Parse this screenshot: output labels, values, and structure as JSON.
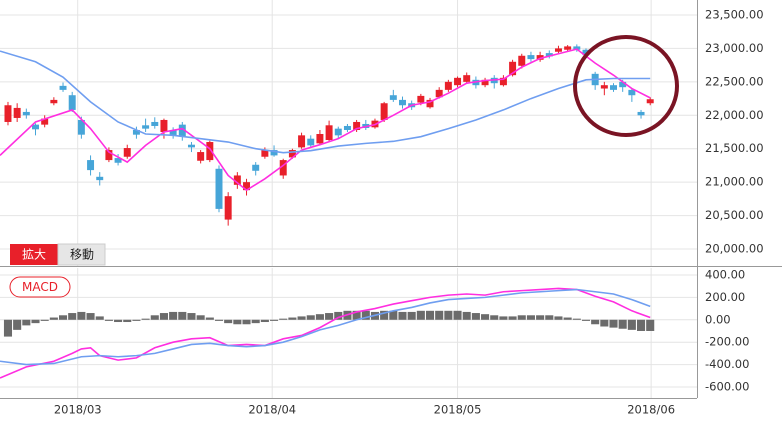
{
  "controls": [
    "拡大",
    "移動"
  ],
  "chart_data": [
    {
      "type": "candlestick",
      "grid": true,
      "up_color": "#e8202a",
      "down_color": "#46a5d8",
      "xlim": [
        -0.87,
        75.1
      ],
      "ylim": [
        19746,
        23724
      ],
      "yticks": [
        {
          "value": 20000,
          "label": "20,000.00"
        },
        {
          "value": 20500,
          "label": "20,500.00"
        },
        {
          "value": 21000,
          "label": "21,000.00"
        },
        {
          "value": 21500,
          "label": "21,500.00"
        },
        {
          "value": 22000,
          "label": "22,000.00"
        },
        {
          "value": 22500,
          "label": "22,500.00"
        },
        {
          "value": 23000,
          "label": "23,000.00"
        },
        {
          "value": 23500,
          "label": "23,500.00"
        }
      ],
      "x": [
        0,
        1,
        2,
        3,
        4,
        5,
        6,
        7,
        8,
        9,
        10,
        11,
        12,
        13,
        14,
        15,
        16,
        17,
        18,
        19,
        20,
        21,
        22,
        23,
        24,
        25,
        26,
        27,
        28,
        29,
        30,
        31,
        32,
        33,
        34,
        35,
        36,
        37,
        38,
        39,
        40,
        41,
        42,
        43,
        44,
        45,
        46,
        47,
        48,
        49,
        50,
        51,
        52,
        53,
        54,
        55,
        56,
        57,
        58,
        59,
        60,
        61,
        62,
        63,
        64,
        65,
        66,
        67,
        68,
        69,
        70
      ],
      "open": [
        21900,
        21960,
        22050,
        21860,
        21860,
        22180,
        22440,
        22300,
        21930,
        21330,
        21080,
        21330,
        21360,
        21380,
        21780,
        21850,
        21900,
        21750,
        21780,
        21860,
        21560,
        21320,
        21330,
        21200,
        20440,
        20960,
        20880,
        21260,
        21380,
        21480,
        21100,
        21370,
        21520,
        21650,
        21580,
        21630,
        21800,
        21840,
        21780,
        21870,
        21820,
        21930,
        22300,
        22230,
        22180,
        22190,
        22120,
        22270,
        22380,
        22450,
        22500,
        22530,
        22450,
        22560,
        22450,
        22600,
        22740,
        22900,
        22830,
        22930,
        22950,
        22980,
        23030,
        22980,
        22620,
        22400,
        22450,
        22500,
        22380,
        22050,
        22180
      ],
      "high": [
        22200,
        22180,
        22100,
        21880,
        22000,
        22270,
        22490,
        22350,
        21980,
        21400,
        21150,
        21520,
        21420,
        21560,
        21830,
        21950,
        21970,
        21950,
        21820,
        21900,
        21600,
        21480,
        21620,
        21250,
        20850,
        21150,
        21050,
        21300,
        21520,
        21550,
        21350,
        21500,
        21740,
        21700,
        21780,
        21920,
        21830,
        21870,
        21930,
        21930,
        21950,
        22200,
        22380,
        22280,
        22220,
        22320,
        22260,
        22420,
        22530,
        22580,
        22640,
        22580,
        22560,
        22600,
        22600,
        22830,
        22920,
        22950,
        22950,
        22970,
        23040,
        23050,
        23060,
        23000,
        22650,
        22500,
        22480,
        22530,
        22400,
        22080,
        22270
      ],
      "low": [
        21850,
        21900,
        21950,
        21700,
        21820,
        22150,
        22350,
        22050,
        21650,
        21100,
        20950,
        21300,
        21250,
        21350,
        21650,
        21750,
        21800,
        21650,
        21650,
        21620,
        21450,
        21280,
        21300,
        20550,
        20350,
        20900,
        20800,
        21100,
        21350,
        21380,
        21050,
        21350,
        21500,
        21520,
        21550,
        21600,
        21650,
        21750,
        21750,
        21780,
        21800,
        21900,
        22200,
        22100,
        22080,
        22150,
        22100,
        22250,
        22350,
        22420,
        22480,
        22400,
        22420,
        22400,
        22430,
        22580,
        22700,
        22800,
        22800,
        22850,
        22920,
        22950,
        22950,
        22850,
        22380,
        22300,
        22350,
        22350,
        22200,
        21950,
        22150
      ],
      "close": [
        22150,
        22110,
        22000,
        21790,
        21950,
        22230,
        22380,
        22080,
        21710,
        21180,
        21030,
        21480,
        21290,
        21510,
        21710,
        21800,
        21840,
        21930,
        21700,
        21680,
        21520,
        21450,
        21600,
        20600,
        20790,
        21100,
        21000,
        21170,
        21480,
        21400,
        21330,
        21480,
        21700,
        21550,
        21720,
        21850,
        21700,
        21780,
        21900,
        21810,
        21920,
        22180,
        22230,
        22150,
        22120,
        22290,
        22230,
        22380,
        22500,
        22560,
        22600,
        22450,
        22530,
        22480,
        22560,
        22800,
        22890,
        22840,
        22900,
        22880,
        23000,
        23030,
        22980,
        22900,
        22450,
        22450,
        22380,
        22420,
        22300,
        22000,
        22240
      ],
      "series": [
        {
          "color": "#ff2ee0",
          "x": [
            -0.87,
            3,
            7,
            9,
            11,
            13,
            15,
            17,
            19,
            21,
            22,
            24,
            26,
            28,
            30,
            32,
            34,
            36,
            38,
            40,
            42,
            44,
            46,
            48,
            50,
            52,
            54,
            56,
            58,
            60,
            62,
            64,
            66,
            68,
            70
          ],
          "values": [
            21400,
            21900,
            22080,
            21800,
            21450,
            21300,
            21550,
            21750,
            21800,
            21600,
            21500,
            21100,
            20880,
            21050,
            21250,
            21480,
            21560,
            21650,
            21800,
            21860,
            22000,
            22150,
            22200,
            22330,
            22480,
            22520,
            22540,
            22720,
            22850,
            22920,
            22990,
            22780,
            22600,
            22400,
            22260
          ]
        },
        {
          "color": "#6f9ef0",
          "x": [
            -0.87,
            3,
            6,
            9,
            12,
            15,
            18,
            21,
            24,
            27,
            30,
            33,
            36,
            39,
            42,
            45,
            48,
            51,
            54,
            57,
            60,
            63,
            66,
            70
          ],
          "values": [
            22960,
            22800,
            22570,
            22200,
            21900,
            21720,
            21700,
            21650,
            21600,
            21500,
            21440,
            21470,
            21540,
            21580,
            21610,
            21680,
            21800,
            21930,
            22080,
            22250,
            22400,
            22530,
            22550,
            22550
          ]
        }
      ]
    },
    {
      "type": "bar",
      "label": "MACD",
      "grid": true,
      "color": "#6b6b6b",
      "xlim": [
        -0.87,
        75.1
      ],
      "xticks": [
        {
          "value": 7.6,
          "label": "2018/03"
        },
        {
          "value": 28.8,
          "label": "2018/04"
        },
        {
          "value": 49,
          "label": "2018/05"
        },
        {
          "value": 70.1,
          "label": "2018/06"
        }
      ],
      "ylim": [
        -698,
        462
      ],
      "yticks": [
        {
          "value": -600,
          "label": "-600.00"
        },
        {
          "value": -400,
          "label": "-400.00"
        },
        {
          "value": -200,
          "label": "-200.00"
        },
        {
          "value": 0,
          "label": "0.00"
        },
        {
          "value": 200,
          "label": "200.00"
        },
        {
          "value": 400,
          "label": "400.00"
        }
      ],
      "x": [
        0,
        1,
        2,
        3,
        4,
        5,
        6,
        7,
        8,
        9,
        10,
        11,
        12,
        13,
        14,
        15,
        16,
        17,
        18,
        19,
        20,
        21,
        22,
        23,
        24,
        25,
        26,
        27,
        28,
        29,
        30,
        31,
        32,
        33,
        34,
        35,
        36,
        37,
        38,
        39,
        40,
        41,
        42,
        43,
        44,
        45,
        46,
        47,
        48,
        49,
        50,
        51,
        52,
        53,
        54,
        55,
        56,
        57,
        58,
        59,
        60,
        61,
        62,
        63,
        64,
        65,
        66,
        67,
        68,
        69,
        70
      ],
      "values": [
        -150,
        -90,
        -50,
        -30,
        -10,
        20,
        40,
        60,
        70,
        60,
        30,
        -10,
        -20,
        -20,
        -10,
        10,
        40,
        60,
        70,
        70,
        60,
        40,
        20,
        -10,
        -30,
        -40,
        -40,
        -30,
        -20,
        -10,
        10,
        20,
        30,
        40,
        50,
        60,
        70,
        80,
        80,
        80,
        70,
        80,
        80,
        70,
        70,
        80,
        80,
        80,
        80,
        80,
        70,
        60,
        50,
        40,
        30,
        30,
        40,
        40,
        40,
        40,
        30,
        20,
        10,
        -10,
        -40,
        -60,
        -70,
        -80,
        -90,
        -100,
        -100
      ],
      "series": [
        {
          "color": "#ff2ee0",
          "x": [
            -0.87,
            2,
            5,
            7,
            8,
            9,
            10,
            12,
            14,
            16,
            18,
            20,
            22,
            24,
            26,
            28,
            30,
            32,
            34,
            36,
            38,
            40,
            42,
            44,
            46,
            48,
            50,
            52,
            54,
            56,
            58,
            60,
            62,
            64,
            66,
            68,
            70
          ],
          "values": [
            -520,
            -420,
            -370,
            -300,
            -260,
            -250,
            -320,
            -360,
            -340,
            -250,
            -200,
            -170,
            -160,
            -230,
            -220,
            -230,
            -170,
            -140,
            -70,
            20,
            70,
            100,
            140,
            170,
            200,
            220,
            230,
            220,
            250,
            260,
            270,
            280,
            270,
            210,
            160,
            80,
            20
          ]
        },
        {
          "color": "#6f9ef0",
          "x": [
            -0.87,
            2,
            5,
            8,
            10,
            12,
            14,
            16,
            18,
            20,
            22,
            24,
            26,
            28,
            30,
            32,
            34,
            36,
            38,
            40,
            42,
            44,
            46,
            48,
            50,
            52,
            54,
            56,
            58,
            60,
            62,
            64,
            66,
            68,
            70
          ],
          "values": [
            -370,
            -400,
            -390,
            -330,
            -320,
            -330,
            -320,
            -300,
            -260,
            -220,
            -210,
            -230,
            -240,
            -230,
            -200,
            -150,
            -90,
            -50,
            0,
            40,
            80,
            110,
            150,
            180,
            190,
            200,
            220,
            240,
            250,
            260,
            270,
            250,
            230,
            180,
            120
          ]
        }
      ]
    }
  ]
}
